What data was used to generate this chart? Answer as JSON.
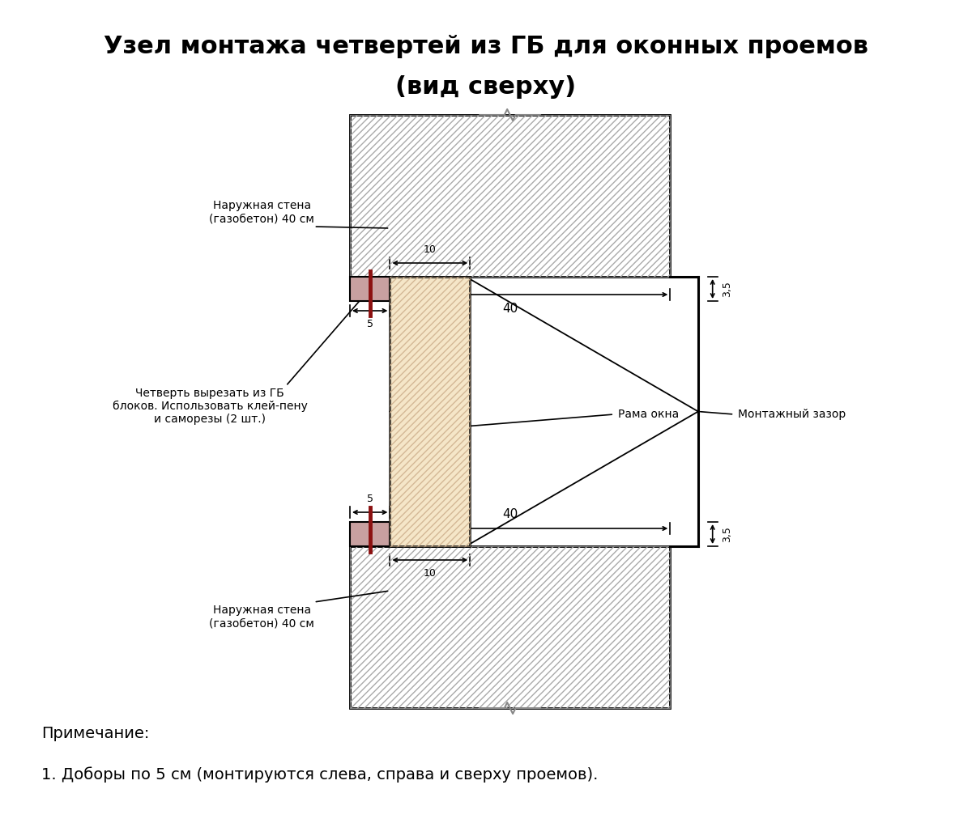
{
  "title_line1": "Узел монтажа четвертей из ГБ для оконных проемов",
  "title_line2": "(вид сверху)",
  "note_line1": "Примечание:",
  "note_line2": "1. Доборы по 5 см (монтируются слева, справа и сверху проемов).",
  "label_wall": "Наружная стена\n(газобетон) 40 см",
  "label_quarter": "Четверть вырезать из ГБ\nблоков. Использовать клей-пену\nи саморезы (2 шт.)",
  "label_frame": "Рама окна",
  "label_gap": "Монтажный зазор",
  "dim_40": "40",
  "dim_35": "3,5",
  "dim_5": "5",
  "dim_10": "10",
  "bg_color": "#ffffff",
  "frame_fill": "#f5e6c8",
  "quarter_fill": "#c8a0a0",
  "screw_color": "#8b1010"
}
